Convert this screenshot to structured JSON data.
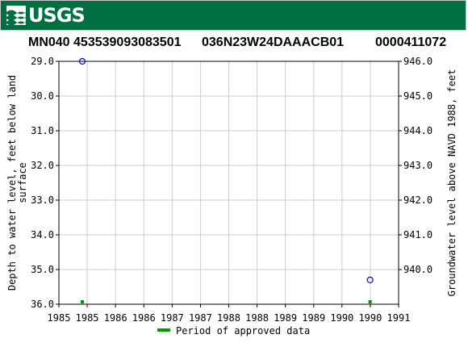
{
  "banner": {
    "logo_text": "USGS",
    "logo_icon": "usgs-wave-icon",
    "color": "#006f41"
  },
  "header": {
    "site_id": "MN040 453539093083501",
    "site_name": "036N23W24DAAACB01",
    "site_number": "0000411072"
  },
  "chart_data": {
    "type": "scatter",
    "x_tick_labels": [
      "1985",
      "1985",
      "1986",
      "1986",
      "1987",
      "1987",
      "1988",
      "1988",
      "1989",
      "1989",
      "1990",
      "1990",
      "1991"
    ],
    "y_left": {
      "label": "Depth to water level, feet below land surface",
      "range": [
        29.0,
        36.0
      ],
      "inverted": true,
      "ticks": [
        29.0,
        30.0,
        31.0,
        32.0,
        33.0,
        34.0,
        35.0,
        36.0
      ],
      "tick_labels": [
        "29.0",
        "30.0",
        "31.0",
        "32.0",
        "33.0",
        "34.0",
        "35.0",
        "36.0"
      ]
    },
    "y_right": {
      "label": "Groundwater level above NAVD 1988, feet",
      "ticks": [
        946.0,
        945.0,
        944.0,
        943.0,
        942.0,
        941.0,
        940.0
      ],
      "tick_labels": [
        "946.0",
        "945.0",
        "944.0",
        "943.0",
        "942.0",
        "941.0",
        "940.0"
      ]
    },
    "x_domain": [
      "1985-01-01",
      "1991-01-01"
    ],
    "series": [
      {
        "name": "",
        "marker": "open-circle",
        "color": "#0000ff",
        "points": [
          {
            "date": "1985-06-01",
            "depth": 29.0
          },
          {
            "date": "1990-07-01",
            "depth": 35.3
          }
        ]
      }
    ],
    "approved_periods": [
      {
        "date": "1985-06-01"
      },
      {
        "date": "1990-07-01"
      }
    ],
    "approved_color": "#009900",
    "grid": true,
    "legend": {
      "label": "Period of approved data",
      "placement": "bottom"
    }
  }
}
